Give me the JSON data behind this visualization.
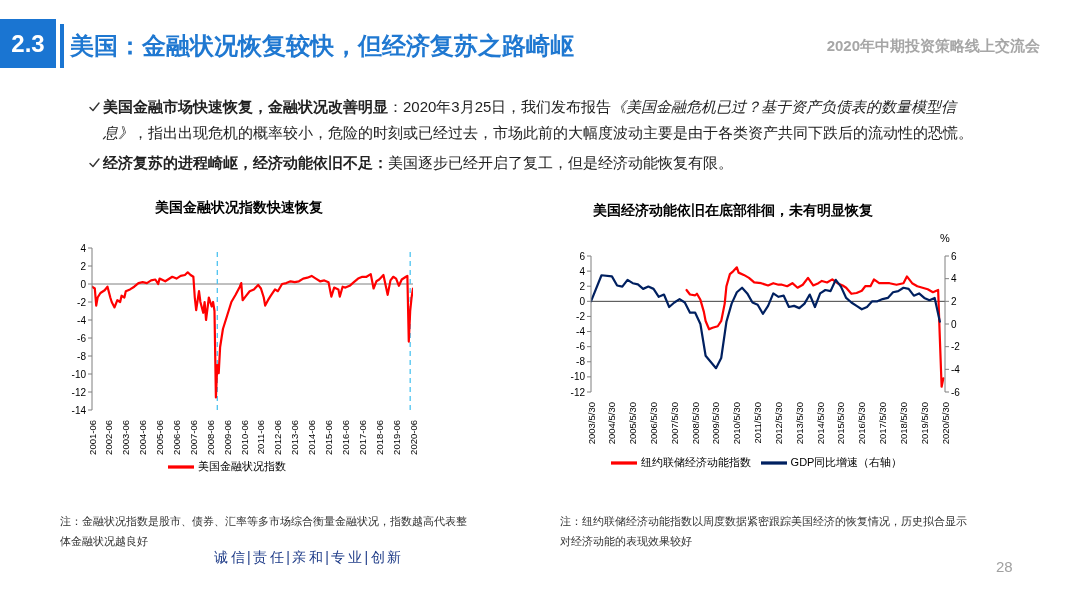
{
  "chart_data": [
    {
      "type": "other",
      "title": "美国：金融状况恢复较快，但经济复苏之路崎岖",
      "annotations": [
        "2.3",
        "2020年中期投资策略线上交流会",
        "美国金融市场快速恢复，金融状况改善明显",
        "：2020年3月25日，我们发布报告",
        "《美国金融危机已过？基于资产负债表的数量模型信",
        "息》",
        "，指出出现危机的概率较小，危险的时刻或已经过去，市场此前的大幅度波动主要是由于各类资产共同下跌后的流动性的恐慌。",
        "经济复苏的进程崎岖，经济动能依旧不足：",
        "美国逐步已经开启了复工，但是经济动能恢复有限。",
        "诚信|责任|亲和|专业|创新",
        "28"
      ]
    },
    {
      "type": "line",
      "title": "美国金融状况指数快速恢复",
      "x": [
        "2001-06",
        "2001-08",
        "2001-09",
        "2001-10",
        "2001-12",
        "2002-03",
        "2002-05",
        "2002-07",
        "2002-08",
        "2002-10",
        "2002-12",
        "2003-02",
        "2003-03",
        "2003-05",
        "2003-06",
        "2003-09",
        "2003-12",
        "2004-03",
        "2004-06",
        "2004-09",
        "2004-12",
        "2005-03",
        "2005-05",
        "2005-06",
        "2005-10",
        "2005-12",
        "2006-03",
        "2006-06",
        "2006-09",
        "2006-12",
        "2007-02",
        "2007-04",
        "2007-06",
        "2007-07",
        "2007-08",
        "2007-10",
        "2007-11",
        "2008-01",
        "2008-02",
        "2008-03",
        "2008-05",
        "2008-07",
        "2008-08",
        "2008-09",
        "2008-10",
        "2008-11",
        "2008-12",
        "2009-01",
        "2009-02",
        "2009-03",
        "2009-06",
        "2009-09",
        "2009-12",
        "2010-03",
        "2010-04",
        "2010-05",
        "2010-07",
        "2010-10",
        "2011-01",
        "2011-04",
        "2011-06",
        "2011-08",
        "2011-09",
        "2011-11",
        "2012-01",
        "2012-04",
        "2012-06",
        "2012-09",
        "2012-12",
        "2013-03",
        "2013-06",
        "2013-09",
        "2013-12",
        "2014-03",
        "2014-06",
        "2014-09",
        "2014-12",
        "2015-03",
        "2015-06",
        "2015-08",
        "2015-10",
        "2016-01",
        "2016-02",
        "2016-04",
        "2016-06",
        "2016-09",
        "2016-12",
        "2017-03",
        "2017-06",
        "2017-09",
        "2017-12",
        "2018-02",
        "2018-04",
        "2018-06",
        "2018-09",
        "2018-12",
        "2019-02",
        "2019-04",
        "2019-06",
        "2019-08",
        "2019-10",
        "2020-01",
        "2020-02",
        "2020-03",
        "2020-04",
        "2020-05",
        "2020-06"
      ],
      "series": [
        {
          "name": "美国金融状况指数",
          "color": "#ff0000",
          "values": [
            -0.3,
            -0.5,
            -2.4,
            -1.5,
            -1.0,
            -0.7,
            -0.3,
            -1.5,
            -2.0,
            -2.6,
            -1.8,
            -2.0,
            -1.3,
            -1.5,
            -0.8,
            -0.6,
            -0.3,
            0.1,
            0.2,
            0.1,
            0.4,
            0.5,
            0.0,
            0.6,
            0.3,
            0.5,
            0.8,
            0.6,
            0.9,
            1.0,
            1.3,
            1.0,
            0.8,
            -1.5,
            -2.9,
            -0.8,
            -2.0,
            -3.2,
            -2.0,
            -4.0,
            -1.5,
            -2.5,
            -2.0,
            -3.0,
            -12.6,
            -9.0,
            -9.9,
            -7.0,
            -6.0,
            -5.0,
            -3.5,
            -2.0,
            -1.2,
            -0.3,
            0.1,
            -1.8,
            -1.4,
            -0.8,
            -0.6,
            -0.1,
            -0.5,
            -1.5,
            -2.4,
            -1.8,
            -1.3,
            -0.6,
            -0.8,
            0.0,
            0.1,
            0.3,
            0.2,
            0.3,
            0.6,
            0.7,
            0.9,
            0.6,
            0.3,
            0.4,
            0.2,
            -1.4,
            -0.4,
            -0.6,
            -1.4,
            -0.3,
            -0.4,
            -0.2,
            0.2,
            0.6,
            0.8,
            0.8,
            1.1,
            -0.5,
            0.3,
            0.5,
            1.0,
            -1.2,
            0.4,
            0.8,
            0.6,
            -0.2,
            0.5,
            0.8,
            0.9,
            -6.4,
            -3.0,
            -1.5,
            -0.5
          ]
        }
      ],
      "xlim": [
        "2001-06",
        "2020-06"
      ],
      "xticks": [
        "2001-06",
        "2002-06",
        "2003-06",
        "2004-06",
        "2005-06",
        "2006-06",
        "2007-06",
        "2008-06",
        "2009-06",
        "2010-06",
        "2011-06",
        "2012-06",
        "2013-06",
        "2014-06",
        "2015-06",
        "2016-06",
        "2017-06",
        "2018-06",
        "2019-06",
        "2020-06"
      ],
      "ylim": [
        -14,
        4
      ],
      "yticks": [
        -14,
        -12,
        -10,
        -8,
        -6,
        -4,
        -2,
        0,
        2,
        4
      ],
      "ref_lines": [
        {
          "axis": "y",
          "value": 0,
          "color": "#808080",
          "line_style": "solid"
        },
        {
          "axis": "x",
          "value": "2008-11",
          "color": "#4dc3f0",
          "line_style": "dashed"
        },
        {
          "axis": "x",
          "value": "2020-04",
          "color": "#4dc3f0",
          "line_style": "dashed"
        }
      ],
      "legend": "bottom",
      "annotations": [
        "注：金融状况指数是股市、债券、汇率等多市场综合衡量金融状况，指数越高代表整体金融状况越良好"
      ]
    },
    {
      "type": "line",
      "title": "美国经济动能依旧在底部徘徊，未有明显恢复",
      "series": [
        {
          "name": "纽约联储经济动能指数",
          "color": "#ff0000",
          "x": [
            "2008-01",
            "2008-03",
            "2008-06",
            "2008-07",
            "2008-09",
            "2008-11",
            "2008-12",
            "2009-02",
            "2009-04",
            "2009-07",
            "2009-09",
            "2009-11",
            "2009-12",
            "2010-02",
            "2010-04",
            "2010-06",
            "2010-07",
            "2010-10",
            "2011-01",
            "2011-04",
            "2011-08",
            "2011-12",
            "2012-03",
            "2012-06",
            "2012-08",
            "2012-11",
            "2013-02",
            "2013-05",
            "2013-08",
            "2013-11",
            "2014-02",
            "2014-05",
            "2014-07",
            "2014-10",
            "2015-01",
            "2015-04",
            "2015-07",
            "2015-09",
            "2015-12",
            "2016-03",
            "2016-06",
            "2016-08",
            "2016-11",
            "2017-01",
            "2017-04",
            "2017-07",
            "2017-10",
            "2018-02",
            "2018-06",
            "2018-08",
            "2018-11",
            "2019-02",
            "2019-05",
            "2019-08",
            "2019-11",
            "2020-02",
            "2020-03",
            "2020-04",
            "2020-05"
          ],
          "values": [
            1.5,
            0.9,
            0.8,
            1.0,
            0.2,
            -1.4,
            -2.6,
            -3.7,
            -3.5,
            -3.3,
            -2.6,
            -0.3,
            2.0,
            3.6,
            4.0,
            4.5,
            3.8,
            3.5,
            3.1,
            2.5,
            2.4,
            2.1,
            2.4,
            2.2,
            2.2,
            2.0,
            2.4,
            1.8,
            2.2,
            3.1,
            2.1,
            2.4,
            2.7,
            2.5,
            2.9,
            2.4,
            2.1,
            1.8,
            1.0,
            1.1,
            1.4,
            2.0,
            2.0,
            2.9,
            2.4,
            2.4,
            2.4,
            2.2,
            2.4,
            3.3,
            2.4,
            2.0,
            1.8,
            1.6,
            1.2,
            1.5,
            -5.0,
            -11.3,
            -10.2
          ]
        },
        {
          "name": "GDP同比增速（右轴）",
          "color": "#002060",
          "axis": "y2",
          "x": [
            "2003-05-30",
            "2003-12",
            "2004-06",
            "2004-09",
            "2004-12",
            "2005-03",
            "2005-06",
            "2005-09",
            "2005-12",
            "2006-03",
            "2006-06",
            "2006-09",
            "2006-12",
            "2007-03",
            "2007-06",
            "2007-09",
            "2007-12",
            "2008-03",
            "2008-06",
            "2008-09",
            "2008-12",
            "2009-06",
            "2009-09",
            "2009-12",
            "2010-03",
            "2010-06",
            "2010-09",
            "2010-12",
            "2011-03",
            "2011-06",
            "2011-09",
            "2011-12",
            "2012-03",
            "2012-06",
            "2012-09",
            "2012-12",
            "2013-03",
            "2013-06",
            "2013-09",
            "2013-12",
            "2014-03",
            "2014-06",
            "2014-09",
            "2014-12",
            "2015-03",
            "2015-06",
            "2015-09",
            "2015-12",
            "2016-03",
            "2016-06",
            "2016-09",
            "2016-12",
            "2017-03",
            "2017-06",
            "2017-09",
            "2017-12",
            "2018-03",
            "2018-06",
            "2018-09",
            "2018-12",
            "2019-03",
            "2019-06",
            "2019-09",
            "2019-12",
            "2020-03"
          ],
          "values": [
            2.0,
            4.3,
            4.2,
            3.4,
            3.3,
            3.9,
            3.6,
            3.5,
            3.1,
            3.3,
            3.1,
            2.4,
            2.6,
            1.5,
            1.9,
            2.2,
            1.9,
            1.0,
            1.0,
            0.0,
            -2.8,
            -3.9,
            -3.0,
            0.2,
            1.8,
            2.8,
            3.2,
            2.7,
            1.9,
            1.7,
            0.9,
            1.6,
            2.7,
            2.4,
            2.5,
            1.5,
            1.6,
            1.4,
            1.8,
            2.6,
            1.5,
            2.7,
            3.0,
            2.9,
            3.9,
            3.3,
            2.3,
            1.9,
            1.6,
            1.3,
            1.5,
            2.0,
            2.0,
            2.2,
            2.3,
            2.8,
            2.9,
            3.2,
            3.1,
            2.5,
            2.7,
            2.3,
            2.1,
            2.3,
            0.2
          ]
        }
      ],
      "xlim": [
        "2003-05-30",
        "2020-05-30"
      ],
      "xticks": [
        {
          "value": "2003-05-30",
          "label": "2003/5/30"
        },
        {
          "value": "2004-05-30",
          "label": "2004/5/30"
        },
        {
          "value": "2005-05-30",
          "label": "2005/5/30"
        },
        {
          "value": "2006-05-30",
          "label": "2006/5/30"
        },
        {
          "value": "2007-05-30",
          "label": "2007/5/30"
        },
        {
          "value": "2008-05-30",
          "label": "2008/5/30"
        },
        {
          "value": "2009-05-30",
          "label": "2009/5/30"
        },
        {
          "value": "2010-05-30",
          "label": "2010/5/30"
        },
        {
          "value": "2011-05-30",
          "label": "2011/5/30"
        },
        {
          "value": "2012-05-30",
          "label": "2012/5/30"
        },
        {
          "value": "2013-05-30",
          "label": "2013/5/30"
        },
        {
          "value": "2014-05-30",
          "label": "2014/5/30"
        },
        {
          "value": "2015-05-30",
          "label": "2015/5/30"
        },
        {
          "value": "2016-05-30",
          "label": "2016/5/30"
        },
        {
          "value": "2017-05-30",
          "label": "2017/5/30"
        },
        {
          "value": "2018-05-30",
          "label": "2018/5/30"
        },
        {
          "value": "2019-05-30",
          "label": "2019/5/30"
        },
        {
          "value": "2020-05-30",
          "label": "2020/5/30"
        }
      ],
      "ylim": [
        -12,
        6
      ],
      "yticks": [
        -12,
        -10,
        -8,
        -6,
        -4,
        -2,
        0,
        2,
        4,
        6
      ],
      "y2lim": [
        -6,
        6
      ],
      "y2ticks": [
        -6,
        -4,
        -2,
        0,
        2,
        4,
        6
      ],
      "y2label": "%",
      "ref_lines": [
        {
          "axis": "y",
          "value": 0,
          "color": "#404040",
          "line_style": "solid"
        }
      ],
      "legend": "bottom",
      "annotations": [
        "注：纽约联储经济动能指数以周度数据紧密跟踪美国经济的恢复情况，历史拟合显示对经济动能的表现效果较好"
      ]
    }
  ]
}
